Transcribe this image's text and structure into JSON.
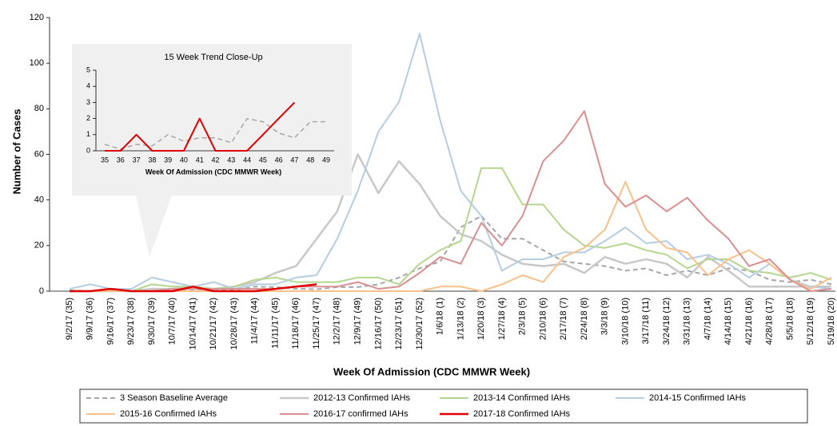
{
  "chart_data": [
    {
      "type": "line",
      "x_label": "Week Of Admission  (CDC MMWR Week)",
      "y_label": "Number of Cases",
      "categories": [
        "9/2/17 (35)",
        "9/9/17 (36)",
        "9/16/17 (37)",
        "9/23/17 (38)",
        "9/30/17 (39)",
        "10/7/17 (40)",
        "10/14/17 (41)",
        "10/21/17 (42)",
        "10/28/17 (43)",
        "11/4/17 (44)",
        "11/11/17 (45)",
        "11/18/17 (46)",
        "11/25/17 (47)",
        "12/2/17 (48)",
        "12/9/17 (49)",
        "12/16/17 (50)",
        "12/23/17 (51)",
        "12/30/17 (52)",
        "1/6/18 (1)",
        "1/13/18 (2)",
        "1/20/18 (3)",
        "1/27/18 (4)",
        "2/3/18 (5)",
        "2/10/18 (6)",
        "2/17/18 (7)",
        "2/24/18 (8)",
        "3/3/18 (9)",
        "3/10/18 (10)",
        "3/17/18 (11)",
        "3/24/18 (12)",
        "3/31/18 (13)",
        "4/7/18 (14)",
        "4/14/18 (15)",
        "4/21/18 (16)",
        "4/28/18 (17)",
        "5/5/18 (18)",
        "5/12/18 (19)",
        "5/19/18 (20)"
      ],
      "ylim": [
        0,
        120
      ],
      "yticks": [
        0,
        20,
        40,
        60,
        80,
        100,
        120
      ],
      "grid": false,
      "legend": "bottom",
      "series": [
        {
          "name": "3 Season Baseline Average",
          "color": "#a6a6a6",
          "dashed": true,
          "width": 2,
          "values": [
            0.4,
            0.1,
            0.4,
            0.3,
            1.0,
            0.6,
            0.8,
            0.8,
            0.5,
            2.0,
            1.8,
            1.1,
            0.8,
            1.8,
            1.8,
            3,
            6,
            10,
            13,
            28,
            33,
            23,
            23,
            18,
            13,
            12,
            11,
            9,
            10,
            7,
            9,
            7,
            10,
            9,
            5,
            4,
            5,
            3
          ]
        },
        {
          "name": "2012-13 Confirmed IAHs",
          "color": "#c8c8c8",
          "width": 2.5,
          "values": [
            0,
            0,
            0,
            0,
            1,
            1,
            2,
            1,
            2,
            4,
            8,
            11,
            23,
            35,
            60,
            43,
            57,
            47,
            33,
            25,
            22,
            16,
            12,
            11,
            12,
            8,
            15,
            12,
            14,
            12,
            6,
            15,
            9,
            2,
            2,
            2,
            2,
            2
          ]
        },
        {
          "name": "2013-14 Confirmed IAHs",
          "color": "#b5d68f",
          "width": 2,
          "values": [
            0,
            0,
            0,
            0,
            3,
            2,
            2,
            1,
            2,
            5,
            6,
            4,
            4,
            4,
            6,
            6,
            3,
            12,
            18,
            22,
            54,
            54,
            38,
            38,
            27,
            20,
            19,
            21,
            18,
            16,
            10,
            14,
            14,
            9,
            8,
            6,
            8,
            5
          ]
        },
        {
          "name": "2014-15 Confirmed IAHs",
          "color": "#b4cde2",
          "width": 2,
          "values": [
            1,
            3,
            1,
            1,
            6,
            4,
            2,
            4,
            1,
            3,
            3,
            6,
            7,
            23,
            44,
            70,
            83,
            113,
            75,
            44,
            33,
            9,
            14,
            14,
            17,
            17,
            22,
            28,
            21,
            22,
            14,
            16,
            12,
            6,
            12,
            5,
            2,
            1
          ]
        },
        {
          "name": "2015-16 Confirmed IAHs",
          "color": "#f9c08a",
          "width": 2,
          "values": [
            0,
            0,
            0,
            0,
            0,
            0,
            0,
            0,
            0,
            0,
            0,
            0,
            0,
            0,
            0,
            0,
            0,
            0,
            2,
            2,
            0,
            3,
            7,
            4,
            15,
            19,
            27,
            48,
            27,
            19,
            17,
            7,
            14,
            18,
            12,
            5,
            1,
            6
          ]
        },
        {
          "name": "2016-17 confirmed IAHs",
          "color": "#d98f8f",
          "width": 2,
          "values": [
            0,
            0,
            1,
            0,
            0,
            1,
            1,
            1,
            1,
            1,
            1,
            2,
            2,
            2,
            4,
            1,
            2,
            8,
            15,
            12,
            30,
            20,
            33,
            57,
            66,
            79,
            47,
            37,
            42,
            35,
            41,
            31,
            23,
            11,
            14,
            5,
            0,
            1
          ]
        },
        {
          "name": "2017-18 Confirmed IAHs",
          "color": "#e00000",
          "width": 2.5,
          "values": [
            0,
            0,
            1,
            0,
            0,
            0,
            2,
            0,
            0,
            0,
            1,
            2,
            3,
            null,
            null,
            null,
            null,
            null,
            null,
            null,
            null,
            null,
            null,
            null,
            null,
            null,
            null,
            null,
            null,
            null,
            null,
            null,
            null,
            null,
            null,
            null,
            null,
            null
          ]
        }
      ]
    },
    {
      "type": "line",
      "title": "15 Week Trend Close-Up",
      "x_label": "Week Of Admission  (CDC MMWR Week)",
      "categories": [
        "35",
        "36",
        "37",
        "38",
        "39",
        "40",
        "41",
        "42",
        "43",
        "44",
        "45",
        "46",
        "47",
        "48",
        "49"
      ],
      "ylim": [
        0,
        5
      ],
      "yticks": [
        0,
        1,
        2,
        3,
        4,
        5
      ],
      "grid": false,
      "series": [
        {
          "color": "#a6a6a6",
          "dashed": true,
          "width": 1.5,
          "values": [
            0.4,
            0.1,
            0.4,
            0.3,
            1.0,
            0.6,
            0.8,
            0.8,
            0.5,
            2.0,
            1.8,
            1.1,
            0.8,
            1.8,
            1.8
          ]
        },
        {
          "color": "#e00000",
          "width": 2,
          "values": [
            0,
            0,
            1,
            0,
            0,
            0,
            2,
            0,
            0,
            0,
            1,
            2,
            3,
            null,
            null
          ]
        }
      ]
    }
  ]
}
